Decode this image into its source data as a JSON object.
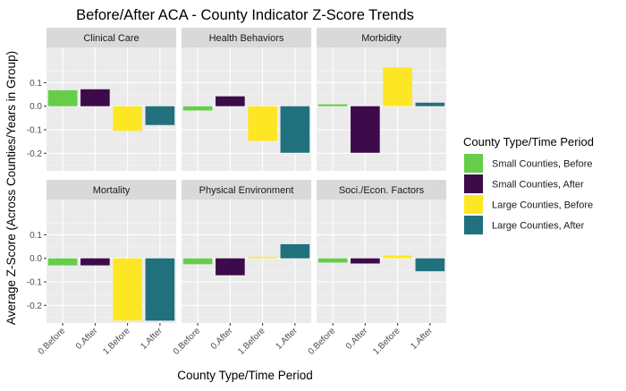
{
  "chart_data": {
    "type": "bar",
    "title": "Before/After ACA - County Indicator Z-Score Trends",
    "xlabel": "County Type/Time Period",
    "ylabel": "Average Z-Score (Across Counties/Years in Group)",
    "categories": [
      "0.Before",
      "0.After",
      "1.Before",
      "1.After"
    ],
    "ylim": [
      -0.275,
      0.25
    ],
    "yticks": [
      0.1,
      0.0,
      -0.1,
      -0.2
    ],
    "ytick_labels": [
      "0.1",
      "0.0",
      "-0.1",
      "-0.2"
    ],
    "grid": true,
    "legend_position": "right",
    "legend_title": "County Type/Time Period",
    "legend": [
      {
        "label": "Small Counties, Before",
        "color": "#66CD4B"
      },
      {
        "label": "Small Counties, After",
        "color": "#3D0A4A"
      },
      {
        "label": "Large Counties, Before",
        "color": "#FDE725"
      },
      {
        "label": "Large Counties, After",
        "color": "#21707E"
      }
    ],
    "panels": [
      {
        "name": "Clinical Care",
        "values": [
          0.068,
          0.072,
          -0.105,
          -0.08
        ]
      },
      {
        "name": "Health Behaviors",
        "values": [
          -0.018,
          0.042,
          -0.148,
          -0.198
        ]
      },
      {
        "name": "Morbidity",
        "values": [
          0.008,
          -0.198,
          0.165,
          0.015
        ]
      },
      {
        "name": "Mortality",
        "values": [
          -0.03,
          -0.03,
          -0.265,
          -0.265
        ]
      },
      {
        "name": "Physical Environment",
        "values": [
          -0.025,
          -0.072,
          0.006,
          0.06
        ]
      },
      {
        "name": "Soci./Econ. Factors",
        "values": [
          -0.018,
          -0.022,
          0.012,
          -0.055
        ]
      }
    ]
  }
}
